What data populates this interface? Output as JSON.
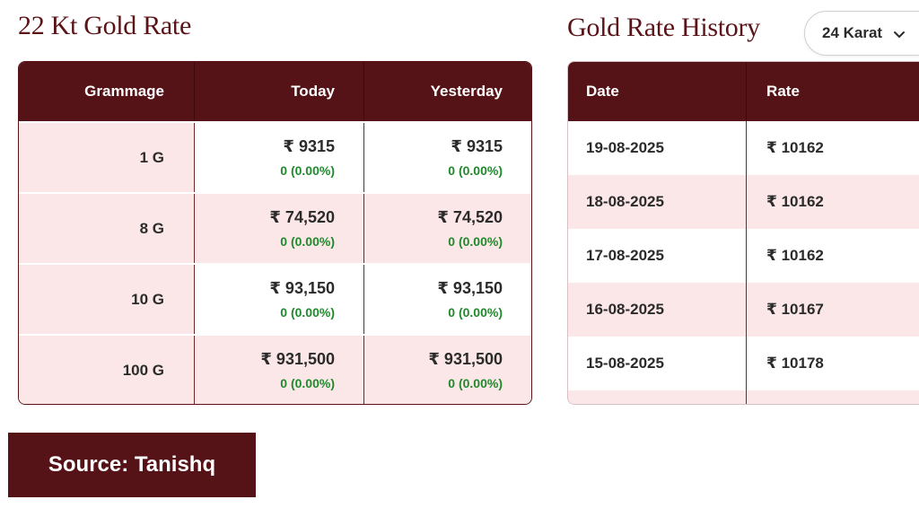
{
  "left": {
    "title": "22 Kt Gold Rate",
    "headers": {
      "grammage": "Grammage",
      "today": "Today",
      "yesterday": "Yesterday"
    },
    "rows": [
      {
        "grammage": "1 G",
        "today": "₹ 9315",
        "today_change": "0 (0.00%)",
        "yesterday": "₹ 9315",
        "yesterday_change": "0 (0.00%)"
      },
      {
        "grammage": "8 G",
        "today": "₹ 74,520",
        "today_change": "0 (0.00%)",
        "yesterday": "₹ 74,520",
        "yesterday_change": "0 (0.00%)"
      },
      {
        "grammage": "10 G",
        "today": "₹ 93,150",
        "today_change": "0 (0.00%)",
        "yesterday": "₹ 93,150",
        "yesterday_change": "0 (0.00%)"
      },
      {
        "grammage": "100 G",
        "today": "₹ 931,500",
        "today_change": "0 (0.00%)",
        "yesterday": "₹ 931,500",
        "yesterday_change": "0 (0.00%)"
      }
    ]
  },
  "right": {
    "title": "Gold Rate History",
    "karat_select": {
      "value": "24 Karat"
    },
    "headers": {
      "date": "Date",
      "rate": "Rate"
    },
    "rows": [
      {
        "date": "19-08-2025",
        "rate": "₹ 10162"
      },
      {
        "date": "18-08-2025",
        "rate": "₹ 10162"
      },
      {
        "date": "17-08-2025",
        "rate": "₹ 10162"
      },
      {
        "date": "16-08-2025",
        "rate": "₹ 10167"
      },
      {
        "date": "15-08-2025",
        "rate": "₹ 10178"
      }
    ]
  },
  "source": "Source: Tanishq",
  "colors": {
    "maroon": "#561317",
    "pink_row": "#fbe7e8",
    "change_green": "#1f8a2b"
  },
  "icons": {
    "karat_dropdown": "chevron-down-icon"
  }
}
